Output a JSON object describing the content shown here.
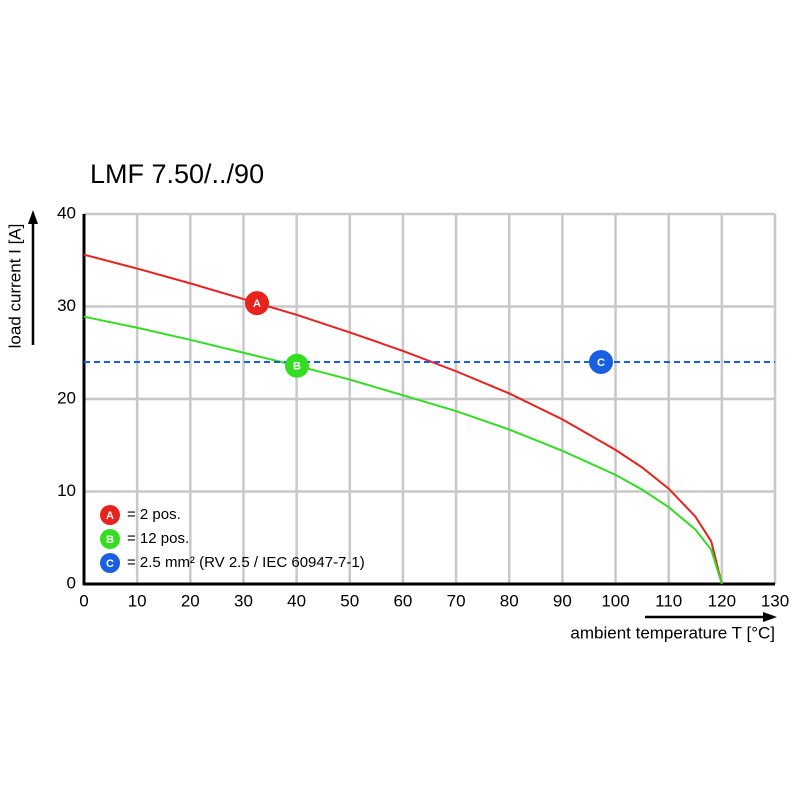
{
  "chart_data": {
    "type": "line",
    "title": "LMF 7.50/../90",
    "x_label": "ambient temperature T [°C]",
    "y_label": "load current I [A]",
    "xlim": [
      0,
      130
    ],
    "ylim": [
      0,
      40
    ],
    "xticks": [
      0,
      10,
      20,
      30,
      40,
      50,
      60,
      70,
      80,
      90,
      100,
      110,
      120,
      130
    ],
    "yticks": [
      0,
      10,
      20,
      30,
      40
    ],
    "grid": true,
    "series": [
      {
        "name": "= 2 pos.",
        "label": "A",
        "color": "#e8221c",
        "dashed": false,
        "x": [
          0,
          10,
          20,
          30,
          40,
          50,
          60,
          70,
          80,
          90,
          100,
          105,
          110,
          115,
          118,
          120
        ],
        "values": [
          35.6,
          34.1,
          32.5,
          30.8,
          29.1,
          27.2,
          25.2,
          23,
          20.6,
          17.8,
          14.5,
          12.6,
          10.3,
          7.3,
          4.6,
          0
        ]
      },
      {
        "name": "= 12 pos.",
        "label": "B",
        "color": "#33dd22",
        "dashed": false,
        "x": [
          0,
          10,
          20,
          30,
          40,
          50,
          60,
          70,
          80,
          90,
          100,
          105,
          110,
          115,
          118,
          120
        ],
        "values": [
          28.9,
          27.7,
          26.4,
          25,
          23.6,
          22.1,
          20.4,
          18.7,
          16.7,
          14.4,
          11.8,
          10.2,
          8.3,
          5.9,
          3.7,
          0
        ]
      },
      {
        "name": "= 2.5 mm² (RV 2.5 / IEC 60947-7-1)",
        "label": "C",
        "color": "#1a5fe0",
        "dashed": true,
        "x": [
          0,
          130
        ],
        "values": [
          24,
          24
        ]
      }
    ]
  }
}
